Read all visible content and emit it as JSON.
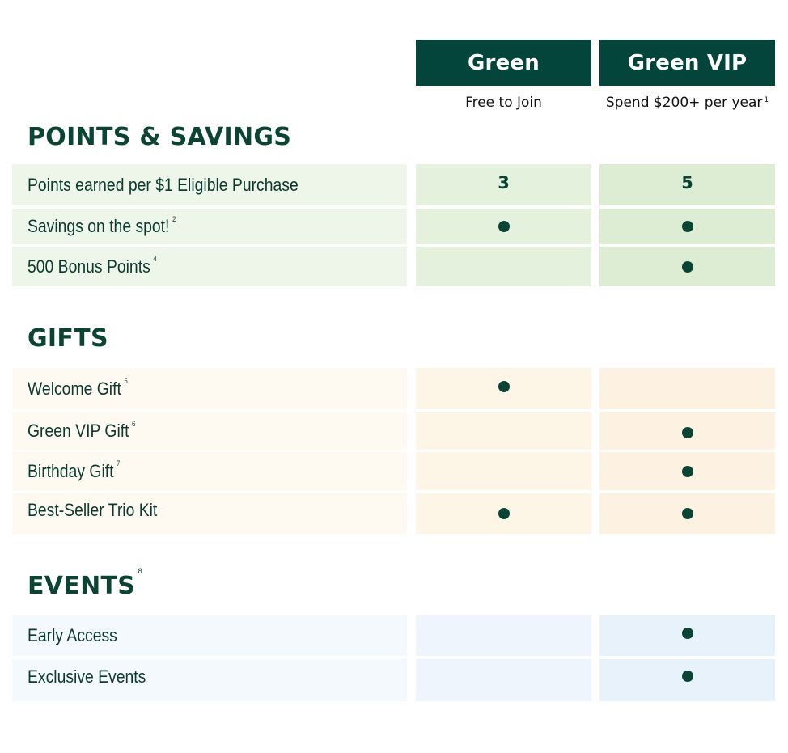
{
  "tiers": [
    {
      "name": "Green",
      "subtitle": "Free to Join",
      "note": ""
    },
    {
      "name": "Green VIP",
      "subtitle": "Spend $200+ per year",
      "note": "1"
    }
  ],
  "colors": {
    "header_bg": "#03453a",
    "text_dark": "#0b4435",
    "points_section_tint": "#e3f1dd",
    "gifts_section_tint": "#fdf6e6",
    "events_section_tint": "#eef5fd"
  },
  "sections": [
    {
      "title": "POINTS & SAVINGS",
      "note": "",
      "rows": [
        {
          "label": "Points earned per $1 Eligible Purchase",
          "note": "",
          "green": "3",
          "vip": "5"
        },
        {
          "label": "Savings on the spot!",
          "note": "2",
          "green": "dot",
          "vip": "dot"
        },
        {
          "label": "500 Bonus Points",
          "note": "4",
          "green": "",
          "vip": "dot"
        }
      ]
    },
    {
      "title": "GIFTS",
      "note": "",
      "rows": [
        {
          "label": "Welcome Gift",
          "note": "5",
          "green": "dot",
          "vip": ""
        },
        {
          "label": "Green VIP Gift",
          "note": "6",
          "green": "",
          "vip": "dot"
        },
        {
          "label": "Birthday Gift",
          "note": "7",
          "green": "",
          "vip": "dot"
        },
        {
          "label": "Best-Seller Trio Kit",
          "note": "",
          "green": "dot",
          "vip": "dot"
        }
      ]
    },
    {
      "title": "EVENTS",
      "note": "8",
      "rows": [
        {
          "label": "Early Access",
          "note": "",
          "green": "",
          "vip": "dot"
        },
        {
          "label": "Exclusive Events",
          "note": "",
          "green": "",
          "vip": "dot"
        }
      ]
    }
  ]
}
